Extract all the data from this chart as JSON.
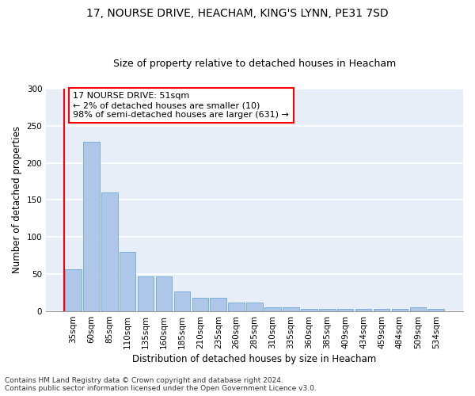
{
  "title_line1": "17, NOURSE DRIVE, HEACHAM, KING'S LYNN, PE31 7SD",
  "title_line2": "Size of property relative to detached houses in Heacham",
  "xlabel": "Distribution of detached houses by size in Heacham",
  "ylabel": "Number of detached properties",
  "footnote1": "Contains HM Land Registry data © Crown copyright and database right 2024.",
  "footnote2": "Contains public sector information licensed under the Open Government Licence v3.0.",
  "categories": [
    "35sqm",
    "60sqm",
    "85sqm",
    "110sqm",
    "135sqm",
    "160sqm",
    "185sqm",
    "210sqm",
    "235sqm",
    "260sqm",
    "285sqm",
    "310sqm",
    "335sqm",
    "360sqm",
    "385sqm",
    "409sqm",
    "434sqm",
    "459sqm",
    "484sqm",
    "509sqm",
    "534sqm"
  ],
  "values": [
    57,
    228,
    160,
    80,
    47,
    47,
    27,
    18,
    18,
    12,
    12,
    5,
    5,
    3,
    3,
    3,
    3,
    3,
    3,
    5,
    3
  ],
  "bar_color": "#aec6e8",
  "bar_edgecolor": "#6fa8d4",
  "annotation_line1": "17 NOURSE DRIVE: 51sqm",
  "annotation_line2": "← 2% of detached houses are smaller (10)",
  "annotation_line3": "98% of semi-detached houses are larger (631) →",
  "ylim": [
    0,
    300
  ],
  "yticks": [
    0,
    50,
    100,
    150,
    200,
    250,
    300
  ],
  "bg_color": "#e8eef8",
  "annotation_box_edgecolor": "red",
  "vline_color": "red",
  "title_fontsize": 10,
  "subtitle_fontsize": 9,
  "axis_label_fontsize": 8.5,
  "tick_fontsize": 7.5,
  "annotation_fontsize": 8,
  "footnote_fontsize": 6.5
}
